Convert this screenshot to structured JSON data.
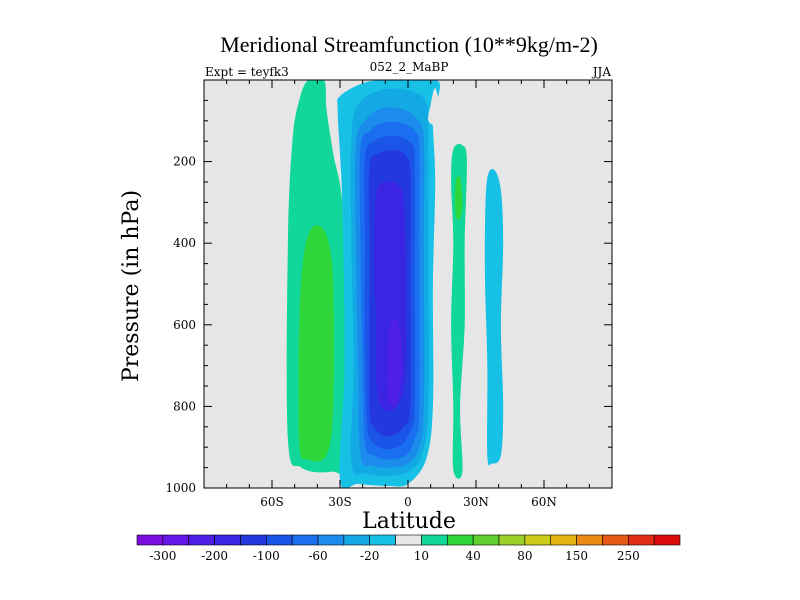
{
  "chart_data": {
    "type": "contour",
    "title": "Meridional Streamfunction (10**9kg/m-2)",
    "subtitle_left": "Expt = teyfk3",
    "subtitle_center": "052_2_MaBP",
    "subtitle_right": "JJA",
    "xlabel": "Latitude",
    "ylabel": "Pressure (in hPa)",
    "xlim": [
      -90,
      90
    ],
    "ylim": [
      1000,
      0
    ],
    "x_ticks": [
      {
        "value": -60,
        "label": "60S"
      },
      {
        "value": -30,
        "label": "30S"
      },
      {
        "value": 0,
        "label": "0"
      },
      {
        "value": 30,
        "label": "30N"
      },
      {
        "value": 60,
        "label": "60N"
      }
    ],
    "y_ticks": [
      {
        "value": 200,
        "label": "200"
      },
      {
        "value": 400,
        "label": "400"
      },
      {
        "value": 600,
        "label": "600"
      },
      {
        "value": 800,
        "label": "800"
      },
      {
        "value": 1000,
        "label": "1000"
      }
    ],
    "colorbar": {
      "colors": [
        "#7b0fe0",
        "#6618e8",
        "#4f1fe6",
        "#3a26e2",
        "#2438e0",
        "#1a55e8",
        "#1a6ff0",
        "#1b8cec",
        "#12a9e4",
        "#17c1e6",
        "#e6e6e6",
        "#12d79b",
        "#2ed63a",
        "#5fd030",
        "#9ad028",
        "#cccc18",
        "#e6b412",
        "#e88a14",
        "#e65a16",
        "#e02e16",
        "#dc0a0a"
      ],
      "labels": [
        {
          "index": 1,
          "text": "-300"
        },
        {
          "index": 3,
          "text": "-200"
        },
        {
          "index": 5,
          "text": "-100"
        },
        {
          "index": 7,
          "text": "-60"
        },
        {
          "index": 9,
          "text": "-20"
        },
        {
          "index": 11,
          "text": "10"
        },
        {
          "index": 13,
          "text": "40"
        },
        {
          "index": 15,
          "text": "80"
        },
        {
          "index": 17,
          "text": "150"
        },
        {
          "index": 19,
          "text": "250"
        }
      ]
    },
    "fields": [
      {
        "name": "southern-green-cell",
        "level_index": 11,
        "points": [
          [
            -44,
            0
          ],
          [
            -37,
            0
          ],
          [
            -36,
            70
          ],
          [
            -33,
            180
          ],
          [
            -29,
            300
          ],
          [
            -26,
            600
          ],
          [
            -26,
            930
          ],
          [
            -34,
            960
          ],
          [
            -47,
            950
          ],
          [
            -53,
            880
          ],
          [
            -53,
            400
          ],
          [
            -51,
            150
          ],
          [
            -48,
            50
          ]
        ]
      },
      {
        "name": "southern-lightgreen-core",
        "level_index": 12,
        "points": [
          [
            -42,
            360
          ],
          [
            -36,
            380
          ],
          [
            -33,
            500
          ],
          [
            -33,
            800
          ],
          [
            -36,
            920
          ],
          [
            -44,
            930
          ],
          [
            -48,
            890
          ],
          [
            -48,
            600
          ],
          [
            -46,
            430
          ]
        ]
      },
      {
        "name": "main-cell-outer",
        "level_index": 9,
        "points": [
          [
            -31,
            80
          ],
          [
            -30,
            40
          ],
          [
            -20,
            8
          ],
          [
            -11,
            0
          ],
          [
            0,
            0
          ],
          [
            10,
            0
          ],
          [
            14,
            8
          ],
          [
            13,
            50
          ],
          [
            11,
            100
          ],
          [
            12,
            250
          ],
          [
            11,
            500
          ],
          [
            11,
            800
          ],
          [
            8,
            930
          ],
          [
            0,
            990
          ],
          [
            -8,
            995
          ],
          [
            -22,
            990
          ],
          [
            -30,
            980
          ],
          [
            -28,
            700
          ],
          [
            -29,
            300
          ]
        ]
      },
      {
        "name": "main-cell-level-8",
        "level_index": 8,
        "points": [
          [
            -25,
            150
          ],
          [
            -22,
            60
          ],
          [
            -12,
            25
          ],
          [
            0,
            25
          ],
          [
            8,
            55
          ],
          [
            9,
            150
          ],
          [
            9,
            400
          ],
          [
            9,
            800
          ],
          [
            6,
            920
          ],
          [
            0,
            960
          ],
          [
            -8,
            970
          ],
          [
            -18,
            965
          ],
          [
            -25,
            940
          ],
          [
            -24,
            700
          ],
          [
            -25,
            400
          ]
        ]
      },
      {
        "name": "main-cell-level-7",
        "level_index": 7,
        "points": [
          [
            -23,
            160
          ],
          [
            -19,
            100
          ],
          [
            -12,
            70
          ],
          [
            -3,
            70
          ],
          [
            4,
            95
          ],
          [
            7,
            150
          ],
          [
            7,
            400
          ],
          [
            7,
            800
          ],
          [
            5,
            900
          ],
          [
            0,
            940
          ],
          [
            -8,
            950
          ],
          [
            -16,
            945
          ],
          [
            -21,
            920
          ],
          [
            -22,
            700
          ],
          [
            -23,
            400
          ]
        ]
      },
      {
        "name": "main-cell-level-6",
        "level_index": 6,
        "points": [
          [
            -21,
            170
          ],
          [
            -17,
            125
          ],
          [
            -11,
            105
          ],
          [
            -3,
            105
          ],
          [
            3,
            125
          ],
          [
            5,
            170
          ],
          [
            5,
            400
          ],
          [
            5,
            800
          ],
          [
            3,
            880
          ],
          [
            -1,
            920
          ],
          [
            -9,
            930
          ],
          [
            -15,
            920
          ],
          [
            -19,
            890
          ],
          [
            -20,
            700
          ],
          [
            -21,
            400
          ]
        ]
      },
      {
        "name": "main-cell-level-5",
        "level_index": 5,
        "points": [
          [
            -19,
            190
          ],
          [
            -15,
            150
          ],
          [
            -9,
            138
          ],
          [
            -3,
            140
          ],
          [
            2,
            160
          ],
          [
            3,
            200
          ],
          [
            3,
            500
          ],
          [
            3,
            800
          ],
          [
            1,
            860
          ],
          [
            -3,
            895
          ],
          [
            -10,
            905
          ],
          [
            -15,
            890
          ],
          [
            -18,
            850
          ],
          [
            -19,
            650
          ],
          [
            -19,
            400
          ]
        ]
      },
      {
        "name": "main-cell-level-4",
        "level_index": 4,
        "points": [
          [
            -17,
            210
          ],
          [
            -13,
            180
          ],
          [
            -8,
            172
          ],
          [
            -3,
            175
          ],
          [
            0,
            195
          ],
          [
            1,
            230
          ],
          [
            1,
            500
          ],
          [
            1,
            800
          ],
          [
            -2,
            850
          ],
          [
            -6,
            870
          ],
          [
            -11,
            872
          ],
          [
            -15,
            850
          ],
          [
            -17,
            810
          ],
          [
            -17,
            600
          ],
          [
            -17,
            400
          ]
        ]
      },
      {
        "name": "main-cell-level-3",
        "level_index": 3,
        "points": [
          [
            -14,
            280
          ],
          [
            -10,
            250
          ],
          [
            -5,
            255
          ],
          [
            -2,
            290
          ],
          [
            -1,
            450
          ],
          [
            -1,
            700
          ],
          [
            -3,
            780
          ],
          [
            -7,
            810
          ],
          [
            -12,
            800
          ],
          [
            -14,
            740
          ],
          [
            -14,
            600
          ],
          [
            -15,
            450
          ]
        ]
      },
      {
        "name": "main-cell-core",
        "level_index": 2,
        "points": [
          [
            -8,
            600
          ],
          [
            -5,
            590
          ],
          [
            -3,
            640
          ],
          [
            -3,
            730
          ],
          [
            -5,
            790
          ],
          [
            -7,
            800
          ],
          [
            -9,
            770
          ],
          [
            -9,
            680
          ]
        ]
      },
      {
        "name": "northern-upper-notch",
        "level_index": 10,
        "points": [
          [
            9,
            100
          ],
          [
            10,
            60
          ],
          [
            12,
            20
          ],
          [
            14,
            70
          ],
          [
            13,
            110
          ]
        ]
      },
      {
        "name": "equatorial-green-band",
        "level_index": 11,
        "points": [
          [
            20,
            170
          ],
          [
            24,
            160
          ],
          [
            26,
            200
          ],
          [
            25,
            400
          ],
          [
            25,
            600
          ],
          [
            23,
            800
          ],
          [
            24,
            960
          ],
          [
            20,
            955
          ],
          [
            20,
            800
          ],
          [
            19,
            600
          ],
          [
            20,
            400
          ],
          [
            19,
            250
          ]
        ]
      },
      {
        "name": "equatorial-lightgreen-blob",
        "level_index": 12,
        "points": [
          [
            21,
            250
          ],
          [
            23,
            240
          ],
          [
            24,
            300
          ],
          [
            23,
            340
          ],
          [
            21,
            330
          ]
        ]
      },
      {
        "name": "northern-cyan-band",
        "level_index": 9,
        "points": [
          [
            35,
            240
          ],
          [
            38,
            220
          ],
          [
            41,
            270
          ],
          [
            42,
            400
          ],
          [
            41,
            600
          ],
          [
            42,
            800
          ],
          [
            41,
            920
          ],
          [
            37,
            940
          ],
          [
            35,
            920
          ],
          [
            35,
            700
          ],
          [
            34,
            500
          ],
          [
            34,
            350
          ]
        ]
      }
    ]
  }
}
